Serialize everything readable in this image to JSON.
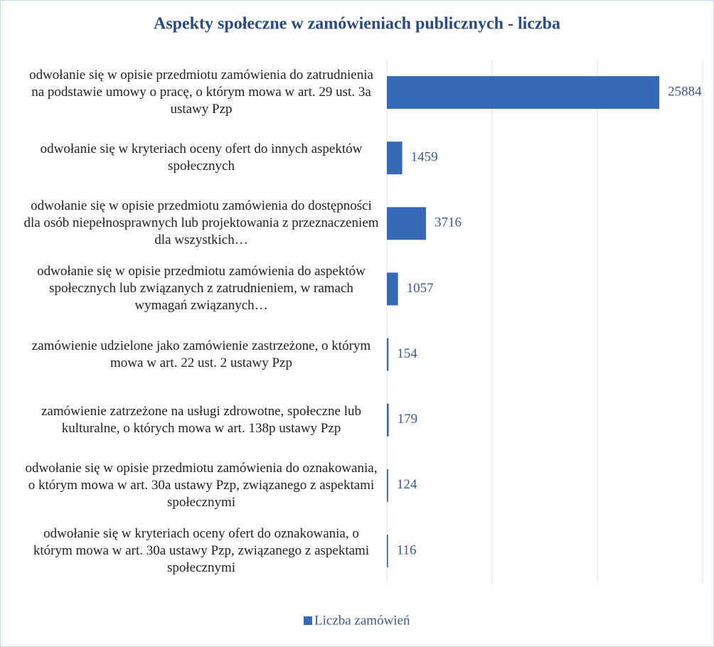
{
  "chart_data": {
    "type": "barh",
    "title": "Aspekty społeczne w zamówieniach publicznych - liczba",
    "categories": [
      "odwołanie się w opisie przedmiotu zamówienia do zatrudnienia na podstawie umowy o pracę, o którym mowa w art. 29 ust. 3a ustawy Pzp",
      "odwołanie się w kryteriach oceny ofert do innych aspektów społecznych",
      "odwołanie się w opisie przedmiotu zamówienia do dostępności dla osób niepełnosprawnych lub projektowania z przeznaczeniem dla wszystkich…",
      "odwołanie się w opisie przedmiotu zamówienia do aspektów społecznych lub związanych z zatrudnieniem, w ramach wymagań związanych…",
      "zamówienie udzielone jako zamówienie zastrzeżone, o którym mowa w art. 22 ust. 2 ustawy Pzp",
      "zamówienie zatrzeżone na usługi zdrowotne, społeczne lub kulturalne, o których mowa w art. 138p ustawy Pzp",
      "odwołanie się w opisie przedmiotu zamówienia do oznakowania, o którym mowa w art. 30a ustawy Pzp, związanego z aspektami społecznymi",
      "odwołanie się w kryteriach oceny ofert do oznakowania, o którym mowa w art. 30a ustawy Pzp, związanego z aspektami społecznymi"
    ],
    "series": [
      {
        "name": "Liczba zamówień",
        "color": "#3568b5",
        "values": [
          25884,
          1459,
          3716,
          1057,
          154,
          179,
          124,
          116
        ]
      }
    ],
    "xlim": [
      0,
      30000
    ],
    "xticks": [
      0,
      10000,
      20000,
      30000
    ],
    "grid": true,
    "legend": "bottom"
  }
}
